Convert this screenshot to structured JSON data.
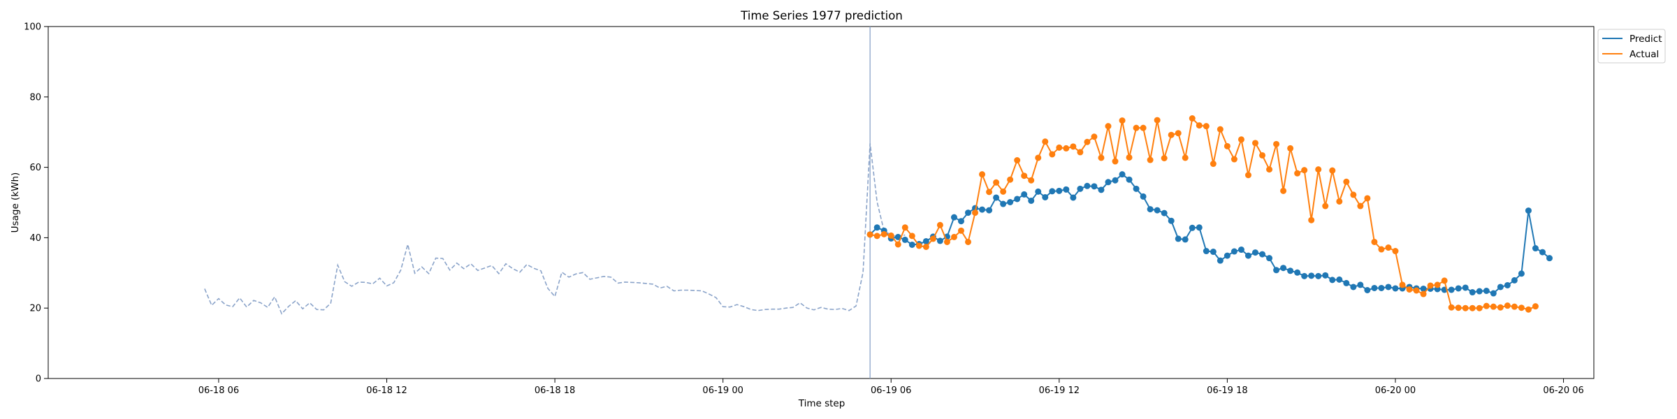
{
  "chart_data": {
    "type": "line",
    "title": "Time Series 1977 prediction",
    "xlabel": "Time step",
    "ylabel": "Usage (kWh)",
    "ylim": [
      0,
      100
    ],
    "yticks": [
      0,
      20,
      40,
      60,
      80,
      100
    ],
    "xlim": [
      "2024-06-17T23:55",
      "2024-06-20T07:05"
    ],
    "xticks": [
      {
        "t": "2024-06-18T06:00",
        "label": "06-18 06"
      },
      {
        "t": "2024-06-18T12:00",
        "label": "06-18 12"
      },
      {
        "t": "2024-06-18T18:00",
        "label": "06-18 18"
      },
      {
        "t": "2024-06-19T00:00",
        "label": "06-19 00"
      },
      {
        "t": "2024-06-19T06:00",
        "label": "06-19 06"
      },
      {
        "t": "2024-06-19T12:00",
        "label": "06-19 12"
      },
      {
        "t": "2024-06-19T18:00",
        "label": "06-19 18"
      },
      {
        "t": "2024-06-20T00:00",
        "label": "06-20 00"
      },
      {
        "t": "2024-06-20T06:00",
        "label": "06-20 06"
      }
    ],
    "grid": false,
    "legend_position": "top-right outside",
    "cutoff": "2024-06-19T05:15",
    "history": {
      "start": "2024-06-18T05:30",
      "interval_minutes": 15,
      "color": "#8aa3c9",
      "values": [
        25.5,
        20.8,
        22.7,
        20.9,
        20.4,
        22.9,
        20.3,
        22.2,
        21.5,
        20.2,
        23.2,
        18.4,
        20.5,
        22.1,
        19.8,
        21.5,
        19.6,
        19.5,
        21.4,
        32.2,
        27.5,
        26.2,
        27.4,
        27.3,
        26.9,
        28.5,
        26.3,
        27.2,
        30.8,
        38.1,
        29.9,
        31.7,
        29.8,
        34.2,
        34.1,
        30.8,
        32.8,
        31.2,
        32.6,
        30.7,
        31.4,
        32.1,
        29.8,
        32.6,
        31.2,
        30.2,
        32.4,
        31.3,
        30.6,
        25.6,
        23.3,
        30.2,
        28.8,
        29.7,
        30.1,
        28.2,
        28.6,
        29.0,
        28.8,
        27.1,
        27.4,
        27.3,
        27.2,
        27.0,
        26.8,
        25.7,
        26.2,
        24.9,
        25.1,
        25.1,
        25.0,
        24.9,
        24.0,
        23.0,
        20.4,
        20.3,
        21.0,
        20.4,
        19.6,
        19.3,
        19.6,
        19.7,
        19.7,
        20.0,
        20.2,
        21.5,
        20.0,
        19.5,
        20.2,
        19.7,
        19.6,
        19.9,
        19.3,
        20.6,
        30.2,
        66.8,
        50.2,
        41.9,
        40.8,
        40.1,
        40.8
      ]
    },
    "series": [
      {
        "name": "Predict",
        "color": "#1f77b4",
        "start": "2024-06-19T05:15",
        "interval_minutes": 15,
        "values": [
          40.9,
          42.9,
          42.0,
          39.8,
          40.2,
          39.4,
          38.0,
          38.2,
          39.0,
          40.3,
          39.1,
          40.3,
          45.8,
          44.7,
          47.1,
          48.4,
          48.0,
          47.8,
          51.4,
          49.6,
          50.1,
          51.0,
          52.3,
          50.5,
          53.1,
          51.5,
          53.2,
          53.3,
          53.7,
          51.4,
          53.9,
          54.7,
          54.6,
          53.6,
          55.8,
          56.3,
          58.0,
          56.5,
          53.9,
          51.7,
          48.1,
          47.8,
          47.0,
          44.8,
          39.7,
          39.5,
          42.8,
          42.9,
          36.2,
          36.0,
          33.5,
          34.9,
          36.1,
          36.6,
          34.9,
          35.8,
          35.3,
          34.2,
          30.8,
          31.4,
          30.6,
          30.1,
          29.1,
          29.2,
          29.1,
          29.3,
          28.0,
          28.1,
          27.1,
          26.0,
          26.6,
          25.1,
          25.7,
          25.7,
          26.0,
          25.6,
          25.6,
          26.0,
          25.6,
          25.5,
          25.5,
          25.4,
          25.2,
          25.2,
          25.6,
          25.8,
          24.5,
          24.8,
          24.9,
          24.2,
          26.0,
          26.5,
          27.9,
          29.8,
          47.7,
          37.0,
          35.9,
          34.2
        ]
      },
      {
        "name": "Actual",
        "color": "#ff7f0e",
        "start": "2024-06-19T05:15",
        "interval_minutes": 15,
        "values": [
          40.9,
          40.5,
          41.0,
          40.6,
          38.1,
          42.9,
          40.5,
          37.7,
          37.4,
          39.7,
          43.6,
          38.8,
          40.2,
          42.0,
          38.8,
          47.1,
          58.0,
          53.0,
          55.7,
          53.1,
          56.5,
          62.0,
          57.6,
          56.3,
          62.7,
          67.3,
          63.7,
          65.6,
          65.4,
          65.9,
          64.3,
          67.2,
          68.7,
          62.7,
          71.7,
          61.7,
          73.3,
          62.8,
          71.2,
          71.2,
          62.1,
          73.4,
          62.6,
          69.2,
          69.7,
          62.7,
          73.9,
          71.9,
          71.7,
          61.0,
          70.8,
          66.0,
          62.3,
          67.9,
          57.8,
          66.9,
          63.4,
          59.4,
          66.6,
          53.3,
          65.4,
          58.3,
          59.2,
          45.0,
          59.4,
          49.0,
          59.1,
          50.3,
          55.9,
          52.2,
          49.0,
          51.2,
          38.8,
          36.7,
          37.2,
          36.2,
          26.6,
          25.3,
          25.0,
          24.0,
          26.4,
          26.6,
          27.8,
          20.2,
          20.1,
          20.0,
          20.0,
          20.0,
          20.6,
          20.4,
          20.2,
          20.7,
          20.4,
          20.1,
          19.6,
          20.5
        ]
      }
    ]
  }
}
